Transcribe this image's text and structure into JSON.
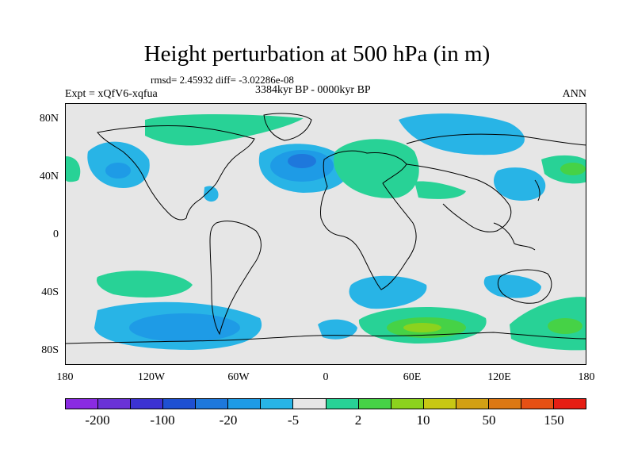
{
  "title": "Height perturbation at 500 hPa (in m)",
  "stats_line": "rmsd= 2.45932 diff= -3.02286e-08",
  "period_line": "3384kyr BP - 0000kyr BP",
  "experiment_line": "Expt = xQfV6-xqfua",
  "season": "ANN",
  "lat_ticks": [
    "80N",
    "40N",
    "0",
    "40S",
    "80S"
  ],
  "lon_ticks": [
    "180",
    "120W",
    "60W",
    "0",
    "60E",
    "120E",
    "180"
  ],
  "colorbar": {
    "colors": [
      "#8a2be2",
      "#6a32d6",
      "#3c32d2",
      "#1e50d2",
      "#1e78dc",
      "#1e9be6",
      "#28b4e6",
      "#e6e6e6",
      "#28d296",
      "#46d246",
      "#8cd21e",
      "#c8c814",
      "#d2a014",
      "#dc7814",
      "#e65014",
      "#e61e14"
    ],
    "labels": [
      "-200",
      "-100",
      "-20",
      "-5",
      "2",
      "10",
      "50",
      "150"
    ]
  },
  "colors": {
    "background": "#e6e6e6",
    "neg_light": "#28b4e6",
    "neg_mid": "#1e9be6",
    "neg_strong": "#1e78dc",
    "pos_light": "#28d296",
    "pos_mid": "#46d246",
    "pos_strong": "#8cd21e"
  }
}
